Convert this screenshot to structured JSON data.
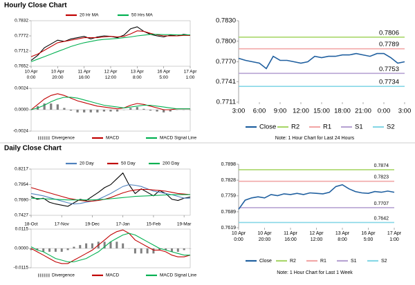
{
  "sections": [
    {
      "title": "Hourly Close Chart"
    },
    {
      "title": "Daily Close Chart"
    }
  ],
  "chart_data": [
    {
      "type": "line",
      "ylim": [
        0.7652,
        0.7832
      ],
      "yticks": [
        0.7652,
        0.7712,
        0.7772,
        0.7832
      ],
      "xlim": [
        0,
        120
      ],
      "xticks": [
        {
          "value": 0,
          "label": [
            "10 Apr",
            "0:00"
          ]
        },
        {
          "value": 20,
          "label": [
            "10 Apr",
            "20:00"
          ]
        },
        {
          "value": 40,
          "label": [
            "11 Apr",
            "16:00"
          ]
        },
        {
          "value": 60,
          "label": [
            "12 Apr",
            "12:00"
          ]
        },
        {
          "value": 80,
          "label": [
            "13 Apr",
            "8:00"
          ]
        },
        {
          "value": 100,
          "label": [
            "16 Apr",
            "5:00"
          ]
        },
        {
          "value": 120,
          "label": [
            "17 Apr",
            "1:00"
          ]
        }
      ],
      "x": [
        0,
        5,
        10,
        15,
        20,
        25,
        30,
        35,
        40,
        45,
        50,
        55,
        60,
        65,
        70,
        75,
        80,
        85,
        90,
        95,
        100,
        105,
        110,
        115,
        120
      ],
      "series": [
        {
          "color": "#000000",
          "values": [
            0.7675,
            0.7695,
            0.7725,
            0.774,
            0.7755,
            0.775,
            0.776,
            0.7765,
            0.777,
            0.776,
            0.7768,
            0.7772,
            0.777,
            0.7765,
            0.7775,
            0.78,
            0.7808,
            0.779,
            0.7778,
            0.7772,
            0.7768,
            0.7775,
            0.7772,
            0.7778,
            0.7775
          ]
        },
        {
          "name": "20 Hr MA",
          "color": "#c00000",
          "values": [
            0.769,
            0.77,
            0.7715,
            0.773,
            0.7745,
            0.775,
            0.7755,
            0.776,
            0.7765,
            0.7765,
            0.7765,
            0.7768,
            0.777,
            0.7768,
            0.777,
            0.778,
            0.7792,
            0.779,
            0.7782,
            0.7776,
            0.7772,
            0.7772,
            0.7772,
            0.7774,
            0.7774
          ]
        },
        {
          "name": "50 Hrs MA",
          "color": "#00b050",
          "values": [
            0.767,
            0.768,
            0.769,
            0.77,
            0.771,
            0.772,
            0.773,
            0.7738,
            0.7745,
            0.775,
            0.7755,
            0.7758,
            0.776,
            0.7762,
            0.7765,
            0.7768,
            0.7772,
            0.7775,
            0.7778,
            0.7778,
            0.7777,
            0.7777,
            0.7776,
            0.7776,
            0.7776
          ]
        }
      ]
    },
    {
      "type": "macd",
      "ylim": [
        -0.0024,
        0.0024
      ],
      "yticks": [
        -0.0024,
        {
          "value": 0,
          "label": "0.0000"
        },
        0.0024
      ],
      "xlim": [
        0,
        120
      ],
      "x": [
        0,
        5,
        10,
        15,
        20,
        25,
        30,
        35,
        40,
        45,
        50,
        55,
        60,
        65,
        70,
        75,
        80,
        85,
        90,
        95,
        100,
        105,
        110,
        115,
        120
      ],
      "series": [
        {
          "name": "Divergence",
          "style": "bar",
          "color": "#808080",
          "values": [
            0,
            0.0004,
            0.0007,
            0.0007,
            0.0006,
            0.0002,
            -0.0001,
            -0.0003,
            -0.0003,
            -0.0003,
            -0.0003,
            -0.0002,
            -0.0002,
            -0.0002,
            0,
            0.0002,
            0.0003,
            0.0001,
            -0.0001,
            -0.0002,
            -0.0003,
            -0.0002,
            0,
            0,
            0
          ]
        },
        {
          "name": "MACD",
          "color": "#c00000",
          "values": [
            0,
            0.0006,
            0.0012,
            0.0016,
            0.0018,
            0.0016,
            0.0013,
            0.001,
            0.0008,
            0.0006,
            0.0004,
            0.0003,
            0.0002,
            0.0001,
            0.0002,
            0.0005,
            0.0007,
            0.0006,
            0.0004,
            0.0002,
            0,
            0,
            0.0001,
            0.0001,
            0.0001
          ]
        },
        {
          "name": "MACD Signal Line",
          "color": "#00b050",
          "values": [
            0,
            0.0002,
            0.0005,
            0.0009,
            0.0012,
            0.0014,
            0.0014,
            0.0013,
            0.0011,
            0.0009,
            0.0007,
            0.0005,
            0.0004,
            0.0003,
            0.0002,
            0.0003,
            0.0004,
            0.0005,
            0.0005,
            0.0004,
            0.0003,
            0.0002,
            0.0001,
            0.0001,
            0.0001
          ]
        }
      ]
    },
    {
      "type": "line",
      "ylim": [
        0.7711,
        0.783
      ],
      "yticks": [
        0.7711,
        0.7741,
        {
          "value": 0.777,
          "label": "0.7770"
        },
        {
          "value": 0.78,
          "label": "0.7800"
        },
        {
          "value": 0.783,
          "label": "0.7830"
        }
      ],
      "xlim": [
        0,
        24
      ],
      "xticks": [
        {
          "value": 0,
          "label": "3:00"
        },
        {
          "value": 3,
          "label": "6:00"
        },
        {
          "value": 6,
          "label": "9:00"
        },
        {
          "value": 9,
          "label": "12:00"
        },
        {
          "value": 12,
          "label": "15:00"
        },
        {
          "value": 15,
          "label": "18:00"
        },
        {
          "value": 18,
          "label": "21:00"
        },
        {
          "value": 21,
          "label": "0:00"
        },
        {
          "value": 24,
          "label": "3:00"
        }
      ],
      "x": [
        0,
        1,
        2,
        3,
        4,
        5,
        6,
        7,
        8,
        9,
        10,
        11,
        12,
        13,
        14,
        15,
        16,
        17,
        18,
        19,
        20,
        21,
        22,
        23,
        24
      ],
      "series": [
        {
          "name": "Close",
          "color": "#1f5f9f",
          "values": [
            0.7775,
            0.7772,
            0.777,
            0.7768,
            0.776,
            0.7778,
            0.7772,
            0.7772,
            0.777,
            0.7768,
            0.777,
            0.7778,
            0.7776,
            0.7778,
            0.7778,
            0.778,
            0.778,
            0.7782,
            0.778,
            0.7778,
            0.7782,
            0.7782,
            0.7776,
            0.7768,
            0.777
          ]
        }
      ],
      "levels": [
        {
          "name": "R2",
          "color": "#a9d66a",
          "value": 0.7806
        },
        {
          "name": "R1",
          "color": "#f2a7a7",
          "value": 0.7789
        },
        {
          "name": "S1",
          "color": "#b7a3d3",
          "value": 0.7753
        },
        {
          "name": "S2",
          "color": "#86d7e6",
          "value": 0.7734
        }
      ],
      "note": "Note: 1 Hour Chart for Last 24 Hours"
    },
    {
      "type": "line",
      "ylim": [
        0.7427,
        0.8217
      ],
      "yticks": [
        0.7427,
        {
          "value": 0.769,
          "label": "0.7690"
        },
        0.7954,
        0.8217
      ],
      "xlim": [
        0,
        130
      ],
      "xticks": [
        {
          "value": 0,
          "label": "18-Oct"
        },
        {
          "value": 25,
          "label": "17-Nov"
        },
        {
          "value": 50,
          "label": "19-Dec"
        },
        {
          "value": 75,
          "label": "17-Jan"
        },
        {
          "value": 100,
          "label": "15-Feb"
        },
        {
          "value": 125,
          "label": "19-Mar"
        }
      ],
      "x": [
        0,
        5,
        10,
        15,
        20,
        25,
        30,
        35,
        40,
        45,
        50,
        55,
        60,
        65,
        70,
        75,
        80,
        85,
        90,
        95,
        100,
        105,
        110,
        115,
        120,
        125,
        130
      ],
      "series": [
        {
          "color": "#000000",
          "values": [
            0.775,
            0.77,
            0.772,
            0.765,
            0.762,
            0.76,
            0.758,
            0.764,
            0.77,
            0.768,
            0.775,
            0.782,
            0.79,
            0.795,
            0.805,
            0.815,
            0.795,
            0.78,
            0.788,
            0.782,
            0.776,
            0.785,
            0.78,
            0.77,
            0.768,
            0.772,
            0.774
          ]
        },
        {
          "name": "20 Day",
          "color": "#4f81bd",
          "values": [
            0.78,
            0.778,
            0.776,
            0.773,
            0.77,
            0.767,
            0.764,
            0.762,
            0.763,
            0.765,
            0.767,
            0.77,
            0.775,
            0.78,
            0.786,
            0.792,
            0.795,
            0.794,
            0.792,
            0.788,
            0.784,
            0.782,
            0.78,
            0.778,
            0.775,
            0.772,
            0.772
          ]
        },
        {
          "name": "50 Day",
          "color": "#c00000",
          "values": [
            0.79,
            0.787,
            0.784,
            0.781,
            0.778,
            0.775,
            0.772,
            0.77,
            0.768,
            0.767,
            0.767,
            0.768,
            0.77,
            0.773,
            0.777,
            0.781,
            0.784,
            0.786,
            0.787,
            0.787,
            0.786,
            0.785,
            0.784,
            0.782,
            0.78,
            0.779,
            0.778
          ]
        },
        {
          "name": "200 Day",
          "color": "#00b050",
          "values": [
            0.772,
            0.7715,
            0.771,
            0.7705,
            0.77,
            0.7695,
            0.769,
            0.769,
            0.769,
            0.769,
            0.769,
            0.7695,
            0.77,
            0.771,
            0.772,
            0.773,
            0.774,
            0.775,
            0.7755,
            0.776,
            0.7765,
            0.777,
            0.7775,
            0.778,
            0.778,
            0.778,
            0.778
          ]
        }
      ]
    },
    {
      "type": "macd",
      "ylim": [
        -0.0115,
        0.0115
      ],
      "yticks": [
        -0.0115,
        {
          "value": 0,
          "label": "0.0000"
        },
        0.0115
      ],
      "xlim": [
        0,
        130
      ],
      "x": [
        0,
        5,
        10,
        15,
        20,
        25,
        30,
        35,
        40,
        45,
        50,
        55,
        60,
        65,
        70,
        75,
        80,
        85,
        90,
        95,
        100,
        105,
        110,
        115,
        120,
        125,
        130
      ],
      "series": [
        {
          "name": "Divergence",
          "style": "bar",
          "color": "#808080",
          "values": [
            -0.001,
            -0.001,
            -0.002,
            -0.002,
            -0.002,
            -0.002,
            -0.001,
            0.001,
            0.002,
            0.003,
            0.003,
            0.004,
            0.004,
            0.004,
            0.004,
            0.003,
            0,
            -0.003,
            -0.003,
            -0.003,
            -0.003,
            -0.001,
            -0.001,
            -0.002,
            -0.002,
            -0.001,
            0
          ]
        },
        {
          "name": "MACD",
          "color": "#c00000",
          "values": [
            0,
            -0.002,
            -0.004,
            -0.006,
            -0.008,
            -0.009,
            -0.009,
            -0.007,
            -0.005,
            -0.003,
            -0.001,
            0.002,
            0.005,
            0.008,
            0.01,
            0.011,
            0.009,
            0.005,
            0.003,
            0.001,
            -0.001,
            -0.001,
            -0.002,
            -0.004,
            -0.005,
            -0.005,
            -0.004
          ]
        },
        {
          "name": "MACD Signal Line",
          "color": "#00b050",
          "values": [
            0.001,
            -0.001,
            -0.002,
            -0.004,
            -0.006,
            -0.007,
            -0.008,
            -0.008,
            -0.007,
            -0.006,
            -0.004,
            -0.002,
            0.001,
            0.004,
            0.006,
            0.008,
            0.009,
            0.008,
            0.006,
            0.004,
            0.002,
            0,
            -0.001,
            -0.002,
            -0.003,
            -0.004,
            -0.004
          ]
        }
      ]
    },
    {
      "type": "line",
      "ylim": [
        0.7619,
        0.7898
      ],
      "yticks": [
        0.7619,
        0.7689,
        0.7759,
        0.7828,
        0.7898
      ],
      "xlim": [
        0,
        120
      ],
      "xticks": [
        {
          "value": 0,
          "label": [
            "10 Apr",
            "0:00"
          ]
        },
        {
          "value": 20,
          "label": [
            "10 Apr",
            "20:00"
          ]
        },
        {
          "value": 40,
          "label": [
            "11 Apr",
            "16:00"
          ]
        },
        {
          "value": 60,
          "label": [
            "12 Apr",
            "12:00"
          ]
        },
        {
          "value": 80,
          "label": [
            "13 Apr",
            "8:00"
          ]
        },
        {
          "value": 100,
          "label": [
            "16 Apr",
            "5:00"
          ]
        },
        {
          "value": 120,
          "label": [
            "17 Apr",
            "1:00"
          ]
        }
      ],
      "x": [
        0,
        5,
        10,
        15,
        20,
        25,
        30,
        35,
        40,
        45,
        50,
        55,
        60,
        65,
        70,
        75,
        80,
        85,
        90,
        95,
        100,
        105,
        110,
        115,
        120
      ],
      "series": [
        {
          "name": "Close",
          "color": "#1f5f9f",
          "values": [
            0.77,
            0.774,
            0.775,
            0.7755,
            0.775,
            0.7765,
            0.776,
            0.7768,
            0.7765,
            0.777,
            0.7765,
            0.7772,
            0.777,
            0.7768,
            0.7775,
            0.78,
            0.7808,
            0.779,
            0.7778,
            0.7772,
            0.777,
            0.7778,
            0.7775,
            0.778,
            0.7775
          ]
        }
      ],
      "levels": [
        {
          "name": "R2",
          "color": "#a9d66a",
          "value": 0.7874
        },
        {
          "name": "R1",
          "color": "#f2a7a7",
          "value": 0.7823
        },
        {
          "name": "S1",
          "color": "#b7a3d3",
          "value": 0.7707
        },
        {
          "name": "S2",
          "color": "#86d7e6",
          "value": 0.7642
        }
      ],
      "note": "Note: 1 Hour Chart for Last 1 Week"
    }
  ]
}
